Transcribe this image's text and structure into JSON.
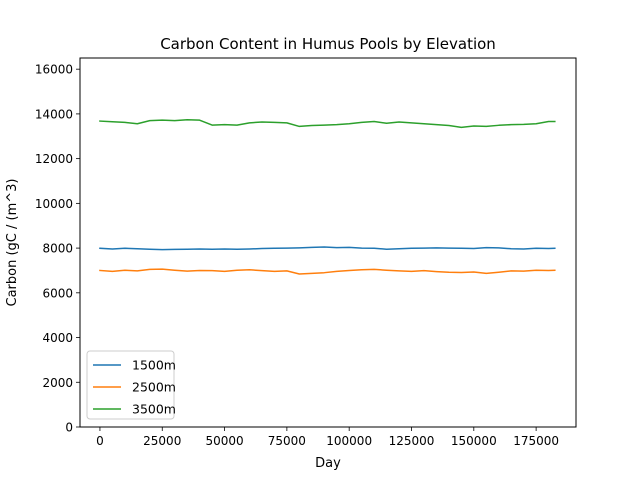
{
  "chart_data": {
    "type": "line",
    "title": "Carbon Content in Humus Pools by Elevation",
    "xlabel": "Day",
    "ylabel": "Carbon (gC / (m^3)",
    "xlim": [
      -8000,
      191000
    ],
    "ylim": [
      0,
      16500
    ],
    "xticks": [
      0,
      25000,
      50000,
      75000,
      100000,
      125000,
      150000,
      175000
    ],
    "yticks": [
      0,
      2000,
      4000,
      6000,
      8000,
      10000,
      12000,
      14000,
      16000
    ],
    "grid": false,
    "legend_position": "lower-left",
    "x": [
      0,
      5000,
      10000,
      15000,
      20000,
      25000,
      30000,
      35000,
      40000,
      45000,
      50000,
      55000,
      60000,
      65000,
      70000,
      75000,
      80000,
      85000,
      90000,
      95000,
      100000,
      105000,
      110000,
      115000,
      120000,
      125000,
      130000,
      135000,
      140000,
      145000,
      150000,
      155000,
      160000,
      165000,
      170000,
      175000,
      180000,
      182500
    ],
    "series": [
      {
        "name": "1500m",
        "color": "#1f77b4",
        "values": [
          7990,
          7960,
          7990,
          7970,
          7950,
          7930,
          7940,
          7950,
          7960,
          7950,
          7960,
          7950,
          7960,
          7980,
          7990,
          8000,
          8010,
          8030,
          8050,
          8020,
          8030,
          8000,
          7990,
          7950,
          7970,
          7990,
          8000,
          8010,
          8000,
          7990,
          7980,
          8020,
          8010,
          7970,
          7960,
          7990,
          7980,
          7990
        ]
      },
      {
        "name": "2500m",
        "color": "#ff7f0e",
        "values": [
          7000,
          6960,
          7010,
          6980,
          7050,
          7060,
          7010,
          6970,
          7000,
          6990,
          6960,
          7010,
          7030,
          6990,
          6960,
          6980,
          6840,
          6870,
          6900,
          6960,
          7000,
          7030,
          7050,
          7010,
          6980,
          6960,
          6990,
          6950,
          6920,
          6910,
          6930,
          6870,
          6920,
          6980,
          6970,
          7010,
          7000,
          7010
        ]
      },
      {
        "name": "3500m",
        "color": "#2ca02c",
        "values": [
          13680,
          13650,
          13620,
          13560,
          13700,
          13720,
          13700,
          13740,
          13720,
          13500,
          13520,
          13500,
          13600,
          13640,
          13620,
          13600,
          13440,
          13480,
          13500,
          13520,
          13560,
          13620,
          13660,
          13580,
          13640,
          13600,
          13560,
          13520,
          13480,
          13400,
          13460,
          13440,
          13490,
          13520,
          13530,
          13560,
          13660,
          13660
        ]
      }
    ]
  }
}
